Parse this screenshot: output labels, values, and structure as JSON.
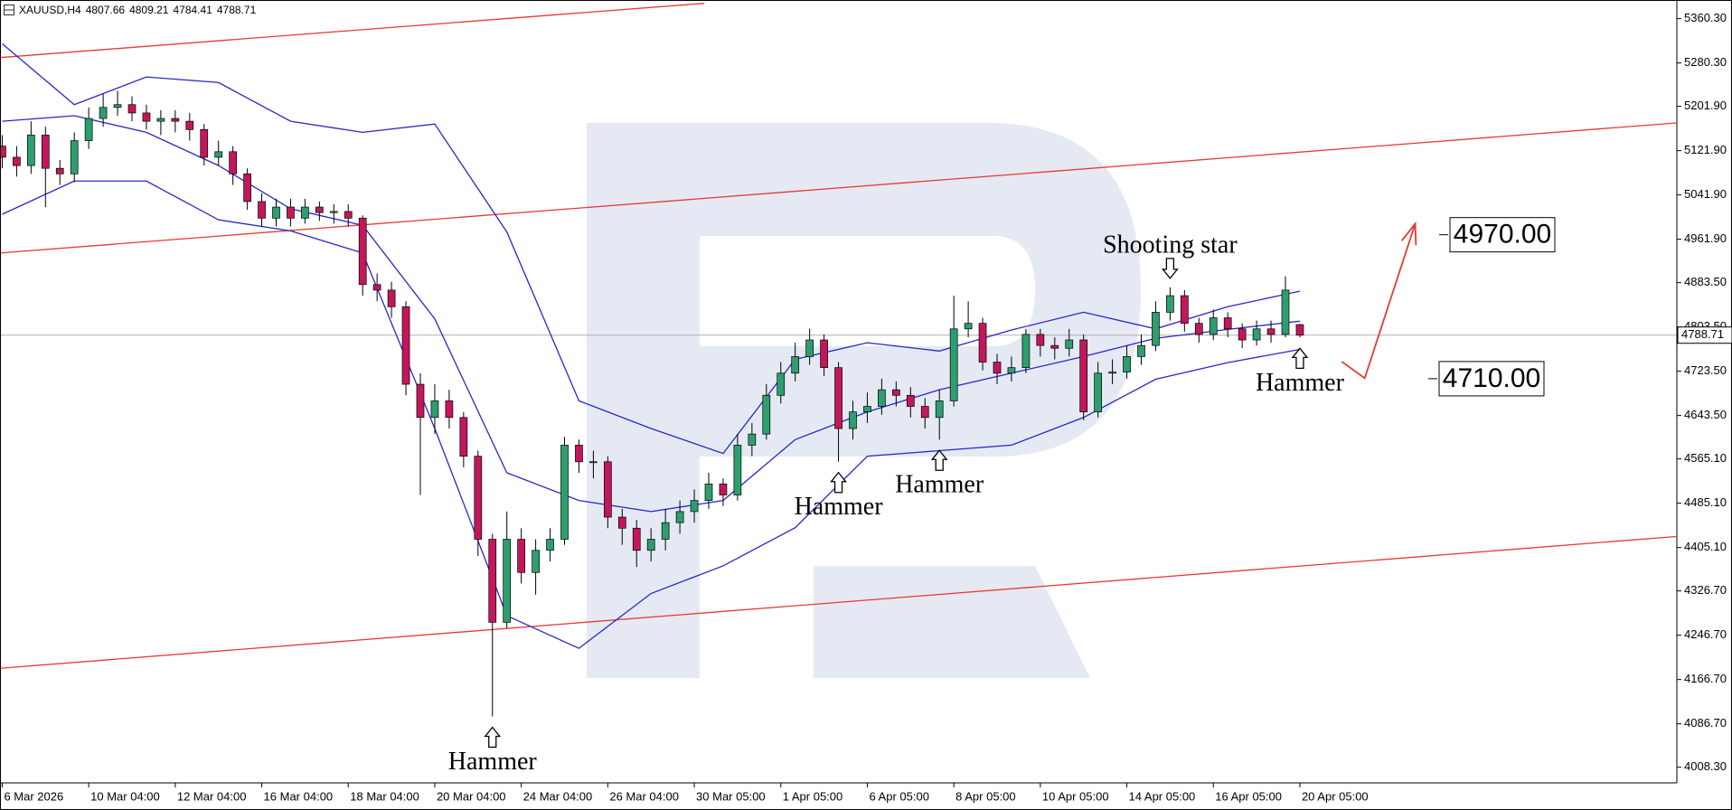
{
  "chart_data": {
    "type": "candlestick",
    "title": "XAUUSD,H4",
    "categories": [
      "6 Mar 2026",
      null,
      null,
      null,
      null,
      null,
      "10 Mar 04:00",
      null,
      null,
      null,
      null,
      null,
      "12 Mar 04:00",
      null,
      null,
      null,
      null,
      null,
      "16 Mar 04:00",
      null,
      null,
      null,
      null,
      null,
      "18 Mar 04:00",
      null,
      null,
      null,
      null,
      null,
      "20 Mar 04:00",
      null,
      null,
      null,
      null,
      null,
      "24 Mar 04:00",
      null,
      null,
      null,
      null,
      null,
      "26 Mar 04:00",
      null,
      null,
      null,
      null,
      null,
      "30 Mar 05:00",
      null,
      null,
      null,
      null,
      null,
      "1 Apr 05:00",
      null,
      null,
      null,
      null,
      null,
      "6 Apr 05:00",
      null,
      null,
      null,
      null,
      null,
      "8 Apr 05:00",
      null,
      null,
      null,
      null,
      null,
      "10 Apr 05:00",
      null,
      null,
      null,
      null,
      null,
      "14 Apr 05:00",
      null,
      null,
      null,
      null,
      null,
      "16 Apr 05:00",
      null,
      null,
      null,
      null,
      null,
      "20 Apr 05:00"
    ],
    "open": [
      5130,
      5110,
      5095,
      5150,
      5090,
      5080,
      5140,
      5180,
      5200,
      5205,
      5190,
      5175,
      5180,
      5175,
      5160,
      5110,
      5120,
      5080,
      5030,
      5000,
      5020,
      5000,
      5020,
      5010,
      5012,
      5000,
      4880,
      4870,
      4840,
      4700,
      4640,
      4670,
      4640,
      4570,
      4420,
      4270,
      4420,
      4360,
      4400,
      4420,
      4590,
      4560,
      4560,
      4460,
      4440,
      4400,
      4420,
      4450,
      4470,
      4490,
      4520,
      4500,
      4590,
      4610,
      4680,
      4720,
      4750,
      4780,
      4730,
      4620,
      4650,
      4660,
      4690,
      4680,
      4660,
      4640,
      4670,
      4800,
      4810,
      4740,
      4720,
      4730,
      4790,
      4770,
      4765,
      4780,
      4650,
      4720,
      4722,
      4750,
      4770,
      4830,
      4860,
      4810,
      4790,
      4820,
      4800,
      4780,
      4800,
      4790,
      4807.66
    ],
    "high": [
      5150,
      5130,
      5175,
      5165,
      5105,
      5155,
      5200,
      5225,
      5230,
      5220,
      5205,
      5195,
      5195,
      5190,
      5170,
      5140,
      5130,
      5090,
      5045,
      5035,
      5035,
      5035,
      5030,
      5025,
      5025,
      5005,
      4900,
      4885,
      4850,
      4720,
      4700,
      4690,
      4650,
      4580,
      4430,
      4470,
      4440,
      4420,
      4440,
      4605,
      4600,
      4580,
      4570,
      4475,
      4455,
      4440,
      4475,
      4490,
      4510,
      4540,
      4530,
      4610,
      4630,
      4700,
      4740,
      4775,
      4800,
      4790,
      4740,
      4670,
      4685,
      4710,
      4705,
      4695,
      4675,
      4690,
      4860,
      4850,
      4820,
      4755,
      4750,
      4800,
      4800,
      4785,
      4800,
      4790,
      4740,
      4745,
      4770,
      4790,
      4850,
      4875,
      4870,
      4820,
      4835,
      4830,
      4810,
      4815,
      4815,
      4895,
      4809.21
    ],
    "low": [
      5090,
      5075,
      5080,
      5020,
      5060,
      5065,
      5125,
      5165,
      5185,
      5175,
      5160,
      5150,
      5155,
      5140,
      5095,
      5095,
      5060,
      5015,
      4985,
      4985,
      4985,
      4990,
      4995,
      4990,
      4985,
      4860,
      4850,
      4820,
      4680,
      4500,
      4610,
      4620,
      4550,
      4390,
      4100,
      4260,
      4340,
      4320,
      4380,
      4410,
      4540,
      4530,
      4440,
      4410,
      4370,
      4380,
      4400,
      4430,
      4450,
      4475,
      4480,
      4490,
      4570,
      4600,
      4665,
      4705,
      4735,
      4715,
      4560,
      4600,
      4630,
      4645,
      4660,
      4640,
      4620,
      4600,
      4660,
      4785,
      4725,
      4700,
      4705,
      4720,
      4750,
      4745,
      4750,
      4635,
      4640,
      4700,
      4710,
      4735,
      4760,
      4815,
      4795,
      4775,
      4780,
      4785,
      4765,
      4770,
      4775,
      4785,
      4784.41
    ],
    "close": [
      5110,
      5095,
      5150,
      5090,
      5080,
      5140,
      5180,
      5200,
      5205,
      5190,
      5175,
      5180,
      5175,
      5160,
      5110,
      5120,
      5080,
      5030,
      5000,
      5020,
      5000,
      5020,
      5010,
      5012,
      5000,
      4880,
      4870,
      4840,
      4700,
      4640,
      4670,
      4640,
      4570,
      4420,
      4270,
      4420,
      4360,
      4400,
      4420,
      4590,
      4560,
      4560,
      4460,
      4440,
      4400,
      4420,
      4450,
      4470,
      4490,
      4520,
      4500,
      4590,
      4610,
      4680,
      4720,
      4750,
      4780,
      4730,
      4620,
      4650,
      4660,
      4690,
      4680,
      4660,
      4640,
      4670,
      4800,
      4810,
      4740,
      4720,
      4730,
      4790,
      4770,
      4765,
      4780,
      4650,
      4720,
      4722,
      4750,
      4770,
      4830,
      4860,
      4810,
      4790,
      4820,
      4800,
      4780,
      4800,
      4790,
      4870,
      4788.71
    ],
    "up_color": "#2e9e6e",
    "down_color": "#c2185b",
    "ylim": [
      3980,
      5394
    ],
    "yticks": [
      {
        "value": 5360.3,
        "label": "5360.30"
      },
      {
        "value": 5280.3,
        "label": "5280.30"
      },
      {
        "value": 5201.9,
        "label": "5201.90"
      },
      {
        "value": 5121.9,
        "label": "5121.90"
      },
      {
        "value": 5041.9,
        "label": "5041.90"
      },
      {
        "value": 4961.9,
        "label": "4961.90"
      },
      {
        "value": 4883.5,
        "label": "4883.50"
      },
      {
        "value": 4803.5,
        "label": "4803.50"
      },
      {
        "value": 4723.5,
        "label": "4723.50"
      },
      {
        "value": 4643.5,
        "label": "4643.50"
      },
      {
        "value": 4565.1,
        "label": "4565.10"
      },
      {
        "value": 4485.1,
        "label": "4485.10"
      },
      {
        "value": 4405.1,
        "label": "4405.10"
      },
      {
        "value": 4326.7,
        "label": "4326.70"
      },
      {
        "value": 4246.7,
        "label": "4246.70"
      },
      {
        "value": 4166.7,
        "label": "4166.70"
      },
      {
        "value": 4086.7,
        "label": "4086.70"
      },
      {
        "value": 4008.3,
        "label": "4008.30"
      }
    ],
    "grid": false,
    "bands": {
      "color": "#2727c8",
      "x": [
        0,
        5,
        10,
        15,
        20,
        25,
        30,
        35,
        40,
        45,
        50,
        55,
        60,
        65,
        70,
        75,
        80,
        85,
        90
      ],
      "upper": [
        5315,
        5205,
        5255,
        5245,
        5175,
        5155,
        5170,
        4975,
        4670,
        4620,
        4575,
        4745,
        4775,
        4760,
        4798,
        4830,
        4800,
        4840,
        4868
      ],
      "middle": [
        5175,
        5185,
        5155,
        5095,
        5017,
        4987,
        4818,
        4540,
        4490,
        4470,
        4490,
        4600,
        4650,
        4690,
        4720,
        4750,
        4783,
        4799,
        4814
      ],
      "lower": [
        5007,
        5067,
        5067,
        4997,
        4977,
        4937,
        4620,
        4282,
        4223,
        4322,
        4372,
        4441,
        4570,
        4580,
        4590,
        4640,
        4709,
        4739,
        4763
      ]
    },
    "channel_color": "#e53935",
    "channels": [
      {
        "x": [
          -0.15,
          48.7
        ],
        "values": [
          5290,
          5388
        ]
      },
      {
        "x": [
          -0.15,
          116.1
        ],
        "values": [
          4937,
          5172
        ]
      },
      {
        "x": [
          -0.15,
          116.1
        ],
        "values": [
          4187,
          4425
        ]
      }
    ],
    "forecast": {
      "x": [
        92.9,
        94.5,
        98.0
      ],
      "values": [
        4741,
        4711,
        4990
      ]
    },
    "annotations": [
      {
        "text": "Hammer",
        "candle": 34,
        "anchor": "low"
      },
      {
        "text": "Hammer",
        "candle": 58,
        "anchor": "low"
      },
      {
        "text": "Hammer",
        "candle": 65,
        "anchor": "low"
      },
      {
        "text": "Shooting star",
        "candle": 81,
        "anchor": "high"
      },
      {
        "text": "Hammer",
        "candle": 90,
        "anchor": "low"
      }
    ],
    "targets": [
      {
        "value": 4970,
        "label": "4970.00"
      },
      {
        "value": 4710,
        "label": "4710.00"
      }
    ]
  }
}
